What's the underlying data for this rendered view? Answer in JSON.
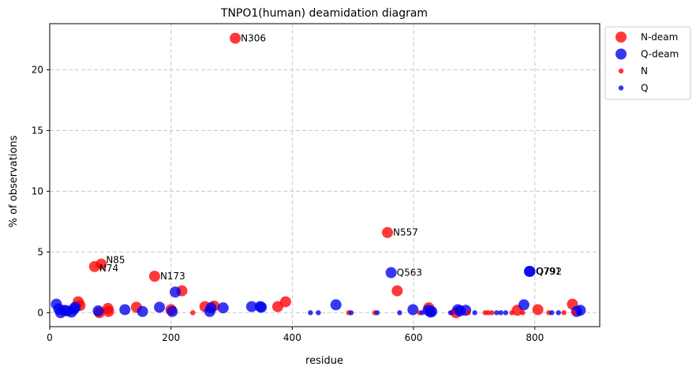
{
  "chart_data": {
    "type": "scatter",
    "title": "TNPO1(human) deamidation diagram",
    "xlabel": "residue",
    "ylabel": "% of observations",
    "xlim": [
      0,
      907
    ],
    "ylim": [
      -1.15,
      23.8
    ],
    "xticks": [
      0,
      200,
      400,
      600,
      800
    ],
    "yticks": [
      0,
      5,
      10,
      15,
      20
    ],
    "grid": true,
    "legend_position": "outside-top-right",
    "colors": {
      "N": "#ff0000",
      "Q": "#0000ee"
    },
    "legend": [
      {
        "label": "N-deam",
        "type": "N",
        "marker": "large"
      },
      {
        "label": "Q-deam",
        "type": "Q",
        "marker": "large"
      },
      {
        "label": "N",
        "type": "N",
        "marker": "small"
      },
      {
        "label": "Q",
        "type": "Q",
        "marker": "small"
      }
    ],
    "series": [
      {
        "name": "N-deam",
        "type": "N",
        "marker": "large",
        "points": [
          {
            "x": 306,
            "y": 22.6,
            "label": "N306"
          },
          {
            "x": 557,
            "y": 6.6,
            "label": "N557"
          },
          {
            "x": 85,
            "y": 4.0,
            "label": "N85"
          },
          {
            "x": 74,
            "y": 3.8,
            "label": "N74"
          },
          {
            "x": 173,
            "y": 3.0,
            "label": "N173"
          },
          {
            "x": 218,
            "y": 1.8
          },
          {
            "x": 573,
            "y": 1.8
          },
          {
            "x": 47,
            "y": 0.9
          },
          {
            "x": 50,
            "y": 0.6
          },
          {
            "x": 96,
            "y": 0.35
          },
          {
            "x": 97,
            "y": 0.1
          },
          {
            "x": 143,
            "y": 0.45
          },
          {
            "x": 200,
            "y": 0.25
          },
          {
            "x": 256,
            "y": 0.5
          },
          {
            "x": 271,
            "y": 0.55
          },
          {
            "x": 376,
            "y": 0.5
          },
          {
            "x": 389,
            "y": 0.9
          },
          {
            "x": 625,
            "y": 0.4
          },
          {
            "x": 771,
            "y": 0.2
          },
          {
            "x": 805,
            "y": 0.25
          },
          {
            "x": 862,
            "y": 0.7
          },
          {
            "x": 670,
            "y": 0.0
          },
          {
            "x": 82,
            "y": 0.0
          }
        ]
      },
      {
        "name": "Q-deam",
        "type": "Q",
        "marker": "large",
        "points": [
          {
            "x": 792,
            "y": 3.4,
            "label": "Q792"
          },
          {
            "x": 791,
            "y": 3.4,
            "label": "Q791"
          },
          {
            "x": 563,
            "y": 3.3,
            "label": "Q563"
          },
          {
            "x": 207,
            "y": 1.7
          },
          {
            "x": 11,
            "y": 0.7
          },
          {
            "x": 15,
            "y": 0.3
          },
          {
            "x": 18,
            "y": 0.0
          },
          {
            "x": 24,
            "y": 0.2
          },
          {
            "x": 29,
            "y": 0.15
          },
          {
            "x": 36,
            "y": 0.05
          },
          {
            "x": 40,
            "y": 0.3
          },
          {
            "x": 42,
            "y": 0.45
          },
          {
            "x": 80,
            "y": 0.15
          },
          {
            "x": 124,
            "y": 0.25
          },
          {
            "x": 153,
            "y": 0.1
          },
          {
            "x": 181,
            "y": 0.45
          },
          {
            "x": 202,
            "y": 0.1
          },
          {
            "x": 264,
            "y": 0.1
          },
          {
            "x": 266,
            "y": 0.4
          },
          {
            "x": 286,
            "y": 0.4
          },
          {
            "x": 333,
            "y": 0.5
          },
          {
            "x": 347,
            "y": 0.5
          },
          {
            "x": 349,
            "y": 0.45
          },
          {
            "x": 472,
            "y": 0.65
          },
          {
            "x": 599,
            "y": 0.25
          },
          {
            "x": 624,
            "y": 0.2
          },
          {
            "x": 628,
            "y": 0.05
          },
          {
            "x": 630,
            "y": 0.1
          },
          {
            "x": 673,
            "y": 0.25
          },
          {
            "x": 677,
            "y": 0.15
          },
          {
            "x": 686,
            "y": 0.2
          },
          {
            "x": 782,
            "y": 0.65
          },
          {
            "x": 869,
            "y": 0.1
          },
          {
            "x": 875,
            "y": 0.2
          }
        ]
      },
      {
        "name": "N",
        "type": "N",
        "marker": "small",
        "points": [
          {
            "x": 236,
            "y": 0
          },
          {
            "x": 493,
            "y": 0
          },
          {
            "x": 536,
            "y": 0
          },
          {
            "x": 664,
            "y": 0
          },
          {
            "x": 718,
            "y": 0
          },
          {
            "x": 723,
            "y": 0
          },
          {
            "x": 729,
            "y": 0
          },
          {
            "x": 762,
            "y": 0
          },
          {
            "x": 780,
            "y": 0
          },
          {
            "x": 823,
            "y": 0
          },
          {
            "x": 848,
            "y": 0
          },
          {
            "x": 865,
            "y": 0
          },
          {
            "x": 610,
            "y": 0
          },
          {
            "x": 690,
            "y": 0
          }
        ]
      },
      {
        "name": "Q",
        "type": "Q",
        "marker": "small",
        "points": [
          {
            "x": 430,
            "y": 0
          },
          {
            "x": 443,
            "y": 0
          },
          {
            "x": 497,
            "y": 0
          },
          {
            "x": 540,
            "y": 0
          },
          {
            "x": 577,
            "y": 0
          },
          {
            "x": 614,
            "y": 0
          },
          {
            "x": 661,
            "y": 0
          },
          {
            "x": 701,
            "y": 0
          },
          {
            "x": 737,
            "y": 0
          },
          {
            "x": 744,
            "y": 0
          },
          {
            "x": 752,
            "y": 0
          },
          {
            "x": 828,
            "y": 0
          },
          {
            "x": 839,
            "y": 0
          },
          {
            "x": 873,
            "y": 0
          }
        ]
      }
    ]
  }
}
